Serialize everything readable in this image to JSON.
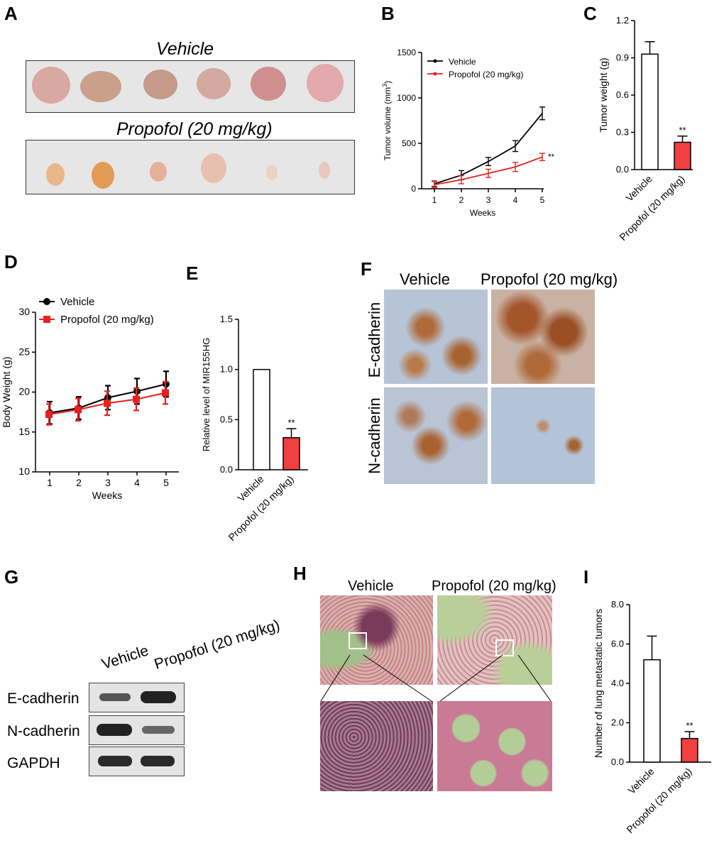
{
  "panels": {
    "A": "A",
    "B": "B",
    "C": "C",
    "D": "D",
    "E": "E",
    "F": "F",
    "G": "G",
    "H": "H",
    "I": "I"
  },
  "panelA": {
    "title_vehicle": "Vehicle",
    "title_propofol": "Propofol (20 mg/kg)"
  },
  "panelF": {
    "col_vehicle": "Vehicle",
    "col_propofol": "Propofol (20 mg/kg)",
    "row_ecad": "E-cadherin",
    "row_ncad": "N-cadherin"
  },
  "panelG": {
    "col_vehicle": "Vehicle",
    "col_propofol": "Propofol (20 mg/kg)",
    "rows": [
      "E-cadherin",
      "N-cadherin",
      "GAPDH"
    ]
  },
  "panelH": {
    "col_vehicle": "Vehicle",
    "col_propofol": "Propofol (20 mg/kg)"
  },
  "colors": {
    "vehicle": "#000000",
    "propofol_line": "#e8201f",
    "propofol_bar": "#f04040",
    "vehicle_bar_fill": "#ffffff"
  },
  "chart_data": [
    {
      "id": "B",
      "type": "line",
      "xlabel": "Weeks",
      "ylabel": "Tumor volume (mm³)",
      "x": [
        1,
        2,
        3,
        4,
        5
      ],
      "xlim": [
        1,
        5
      ],
      "ylim": [
        0,
        1500
      ],
      "yticks": [
        "0",
        "500",
        "1000",
        "1500"
      ],
      "xticks": [
        "1",
        "2",
        "3",
        "4",
        "5"
      ],
      "legend": "top-left",
      "significance": "**",
      "series": [
        {
          "name": "Vehicle",
          "values": [
            55,
            150,
            300,
            470,
            830
          ],
          "err": [
            30,
            50,
            45,
            60,
            70
          ]
        },
        {
          "name": "Propofol (20 mg/kg)",
          "values": [
            45,
            100,
            170,
            240,
            350
          ],
          "err": [
            35,
            45,
            45,
            50,
            40
          ]
        }
      ]
    },
    {
      "id": "C",
      "type": "bar",
      "ylabel": "Tumor weight (g)",
      "categories": [
        "Vehicle",
        "Propofol (20 mg/kg)"
      ],
      "values": [
        0.93,
        0.22
      ],
      "err": [
        0.1,
        0.05
      ],
      "ylim": [
        0,
        1.2
      ],
      "yticks": [
        "0.0",
        "0.3",
        "0.6",
        "0.9",
        "1.2"
      ],
      "significance": "**"
    },
    {
      "id": "D",
      "type": "line",
      "xlabel": "Weeks",
      "ylabel": "Body Weight (g)",
      "x": [
        1,
        2,
        3,
        4,
        5
      ],
      "ylim": [
        10,
        30
      ],
      "yticks": [
        "10",
        "15",
        "20",
        "25",
        "30"
      ],
      "xticks": [
        "1",
        "2",
        "3",
        "4",
        "5"
      ],
      "legend": "top-left",
      "series": [
        {
          "name": "Vehicle",
          "values": [
            17.4,
            18.0,
            19.3,
            20.1,
            21.0
          ],
          "err": [
            1.4,
            1.4,
            1.5,
            1.6,
            1.6
          ]
        },
        {
          "name": "Propofol (20 mg/kg)",
          "values": [
            17.2,
            17.8,
            18.6,
            19.1,
            19.9
          ],
          "err": [
            1.3,
            1.4,
            1.5,
            1.4,
            1.4
          ]
        }
      ]
    },
    {
      "id": "E",
      "type": "bar",
      "ylabel": "Relative level of MIR155HG",
      "categories": [
        "Vehicle",
        "Propofol (20 mg/kg)"
      ],
      "values": [
        1.0,
        0.32
      ],
      "err": [
        0,
        0.09
      ],
      "ylim": [
        0,
        1.5
      ],
      "yticks": [
        "0.0",
        "0.5",
        "1.0",
        "1.5"
      ],
      "significance": "**"
    },
    {
      "id": "I",
      "type": "bar",
      "ylabel": "Number of lung metastatic tumors",
      "categories": [
        "Vehicle",
        "Propofol (20 mg/kg)"
      ],
      "values": [
        5.2,
        1.2
      ],
      "err": [
        1.2,
        0.35
      ],
      "ylim": [
        0,
        8
      ],
      "yticks": [
        "0.0",
        "2.0",
        "4.0",
        "6.0",
        "8.0"
      ],
      "significance": "**"
    }
  ]
}
